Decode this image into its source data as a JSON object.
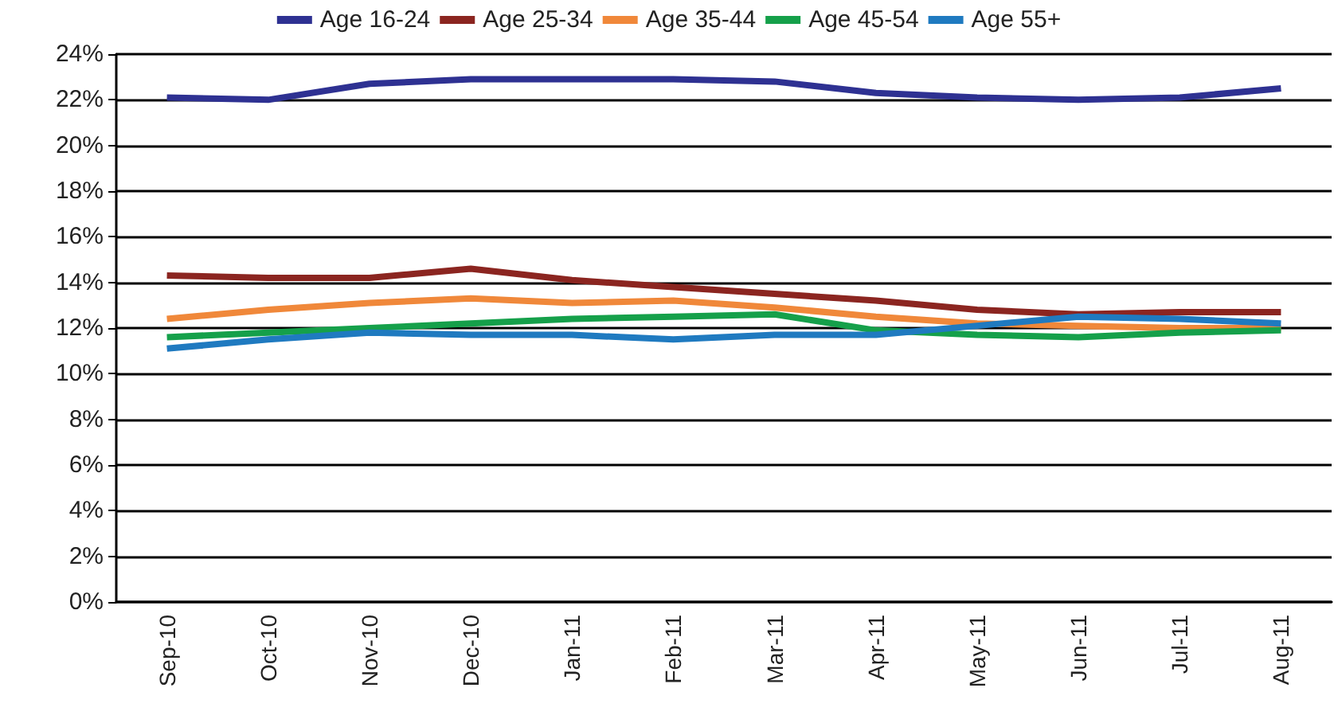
{
  "chart_data": {
    "type": "line",
    "categories": [
      "Sep-10",
      "Oct-10",
      "Nov-10",
      "Dec-10",
      "Jan-11",
      "Feb-11",
      "Mar-11",
      "Apr-11",
      "May-11",
      "Jun-11",
      "Jul-11",
      "Aug-11"
    ],
    "series": [
      {
        "name": "Age 16-24",
        "color": "#2e3192",
        "values": [
          22.1,
          22.0,
          22.7,
          22.9,
          22.9,
          22.9,
          22.8,
          22.3,
          22.1,
          22.0,
          22.1,
          22.5
        ]
      },
      {
        "name": "Age 25-34",
        "color": "#8b2520",
        "values": [
          14.3,
          14.2,
          14.2,
          14.6,
          14.1,
          13.8,
          13.5,
          13.2,
          12.8,
          12.6,
          12.7,
          12.7
        ]
      },
      {
        "name": "Age 35-44",
        "color": "#f0883a",
        "values": [
          12.4,
          12.8,
          13.1,
          13.3,
          13.1,
          13.2,
          12.9,
          12.5,
          12.2,
          12.1,
          12.0,
          12.0
        ]
      },
      {
        "name": "Age 45-54",
        "color": "#15a04a",
        "values": [
          11.6,
          11.8,
          12.0,
          12.2,
          12.4,
          12.5,
          12.6,
          11.9,
          11.7,
          11.6,
          11.8,
          11.9
        ]
      },
      {
        "name": "Age 55+",
        "color": "#1f7ac0",
        "values": [
          11.1,
          11.5,
          11.8,
          11.7,
          11.7,
          11.5,
          11.7,
          11.7,
          12.1,
          12.5,
          12.4,
          12.2
        ]
      }
    ],
    "ylim": [
      0,
      24
    ],
    "yticks": [
      {
        "value": 0,
        "label": "0%"
      },
      {
        "value": 2,
        "label": "2%"
      },
      {
        "value": 4,
        "label": "4%"
      },
      {
        "value": 6,
        "label": "6%"
      },
      {
        "value": 8,
        "label": "8%"
      },
      {
        "value": 10,
        "label": "10%"
      },
      {
        "value": 12,
        "label": "12%"
      },
      {
        "value": 14,
        "label": "14%"
      },
      {
        "value": 16,
        "label": "16%"
      },
      {
        "value": 18,
        "label": "18%"
      },
      {
        "value": 20,
        "label": "20%"
      },
      {
        "value": 22,
        "label": "22%"
      },
      {
        "value": 24,
        "label": "24%"
      }
    ],
    "grid": "y",
    "legend": "top",
    "marker": "none",
    "line_style": "solid"
  }
}
